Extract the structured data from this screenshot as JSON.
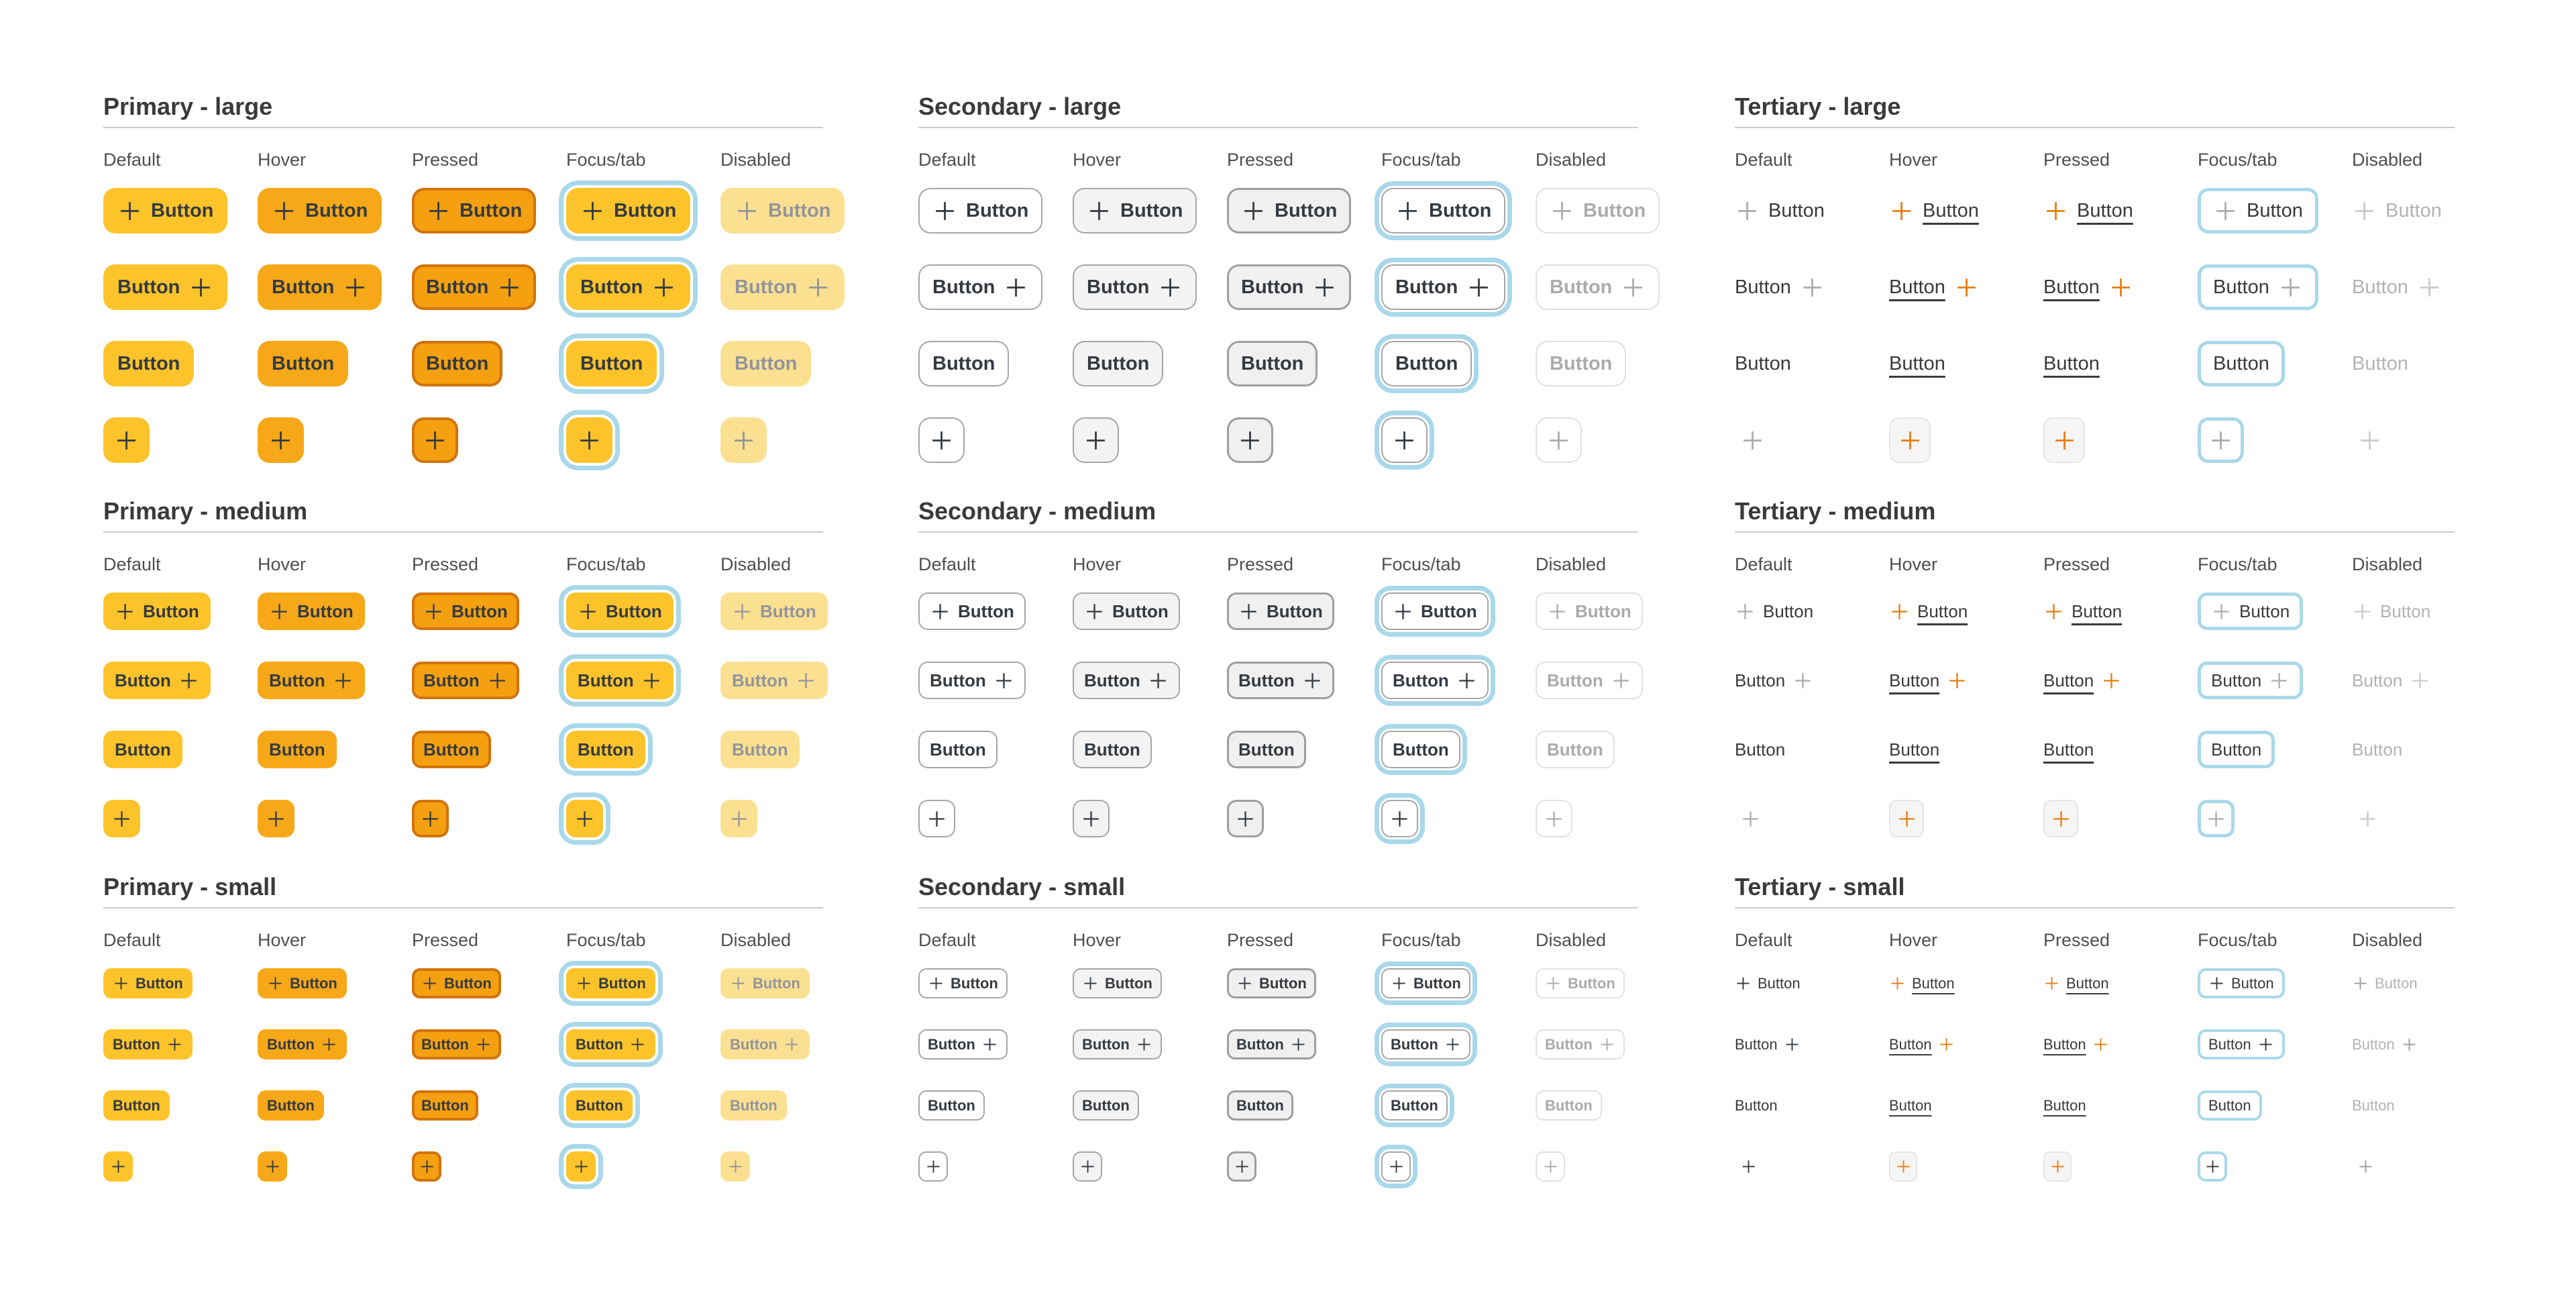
{
  "page": {
    "background": "#ffffff"
  },
  "button_label": "Button",
  "states": [
    "Default",
    "Hover",
    "Pressed",
    "Focus/tab",
    "Disabled"
  ],
  "row_variants": [
    "icon-label",
    "label-icon",
    "label-only",
    "icon-only"
  ],
  "sections": [
    {
      "id": "primary-large",
      "title": "Primary - large",
      "variant": "primary",
      "size": "lg"
    },
    {
      "id": "secondary-large",
      "title": "Secondary - large",
      "variant": "secondary",
      "size": "lg"
    },
    {
      "id": "tertiary-large",
      "title": "Tertiary - large",
      "variant": "tertiary",
      "size": "lg"
    },
    {
      "id": "primary-medium",
      "title": "Primary - medium",
      "variant": "primary",
      "size": "md"
    },
    {
      "id": "secondary-medium",
      "title": "Secondary - medium",
      "variant": "secondary",
      "size": "md"
    },
    {
      "id": "tertiary-medium",
      "title": "Tertiary - medium",
      "variant": "tertiary",
      "size": "md"
    },
    {
      "id": "primary-small",
      "title": "Primary - small",
      "variant": "primary",
      "size": "sm"
    },
    {
      "id": "secondary-small",
      "title": "Secondary - small",
      "variant": "secondary",
      "size": "sm"
    },
    {
      "id": "tertiary-small",
      "title": "Tertiary - small",
      "variant": "tertiary",
      "size": "sm"
    }
  ],
  "icons": {
    "plus": "plus-icon"
  },
  "colors": {
    "primary_default_bg": "#fcc32b",
    "primary_hover_bg": "#f6a819",
    "primary_pressed_bg": "#f4a010",
    "primary_pressed_border": "#d2730d",
    "primary_disabled_bg": "#fce092",
    "primary_disabled_text": "#91959b",
    "focus_ring": "#a9d8ea",
    "secondary_border": "#a6a6a6",
    "secondary_hover_bg": "#f3f3f3",
    "secondary_pressed_bg": "#f0f0f0",
    "secondary_disabled_border": "#e1e1e1",
    "secondary_disabled_text": "#ababab",
    "tertiary_icon_gray": "#acacac",
    "tertiary_icon_orange": "#e87d10",
    "tertiary_disabled_text": "#b3b3b3",
    "tertiary_iconbox_bg": "#f5f5f5",
    "button_text": "#343a40",
    "section_title_text": "#3a3a3a",
    "state_label_text": "#4f4f4f",
    "divider": "#cbcbcb"
  }
}
